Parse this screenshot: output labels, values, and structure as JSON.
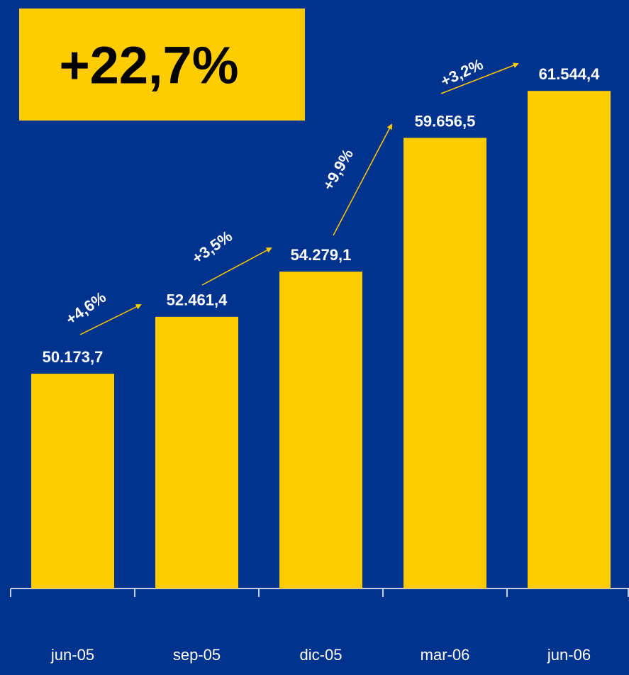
{
  "chart_data": {
    "type": "bar",
    "headline": "+22,7%",
    "categories": [
      "jun-05",
      "sep-05",
      "dic-05",
      "mar-06",
      "jun-06"
    ],
    "values": [
      50173.7,
      52461.4,
      54279.1,
      59656.5,
      61544.4
    ],
    "value_labels": [
      "50.173,7",
      "52.461,4",
      "54.279,1",
      "59.656,5",
      "61.544,4"
    ],
    "growth_labels": [
      "+4,6%",
      "+3,5%",
      "+9,9%",
      "+3,2%"
    ],
    "color": "#FFCC00",
    "ylim": [
      41540,
      65000
    ]
  }
}
